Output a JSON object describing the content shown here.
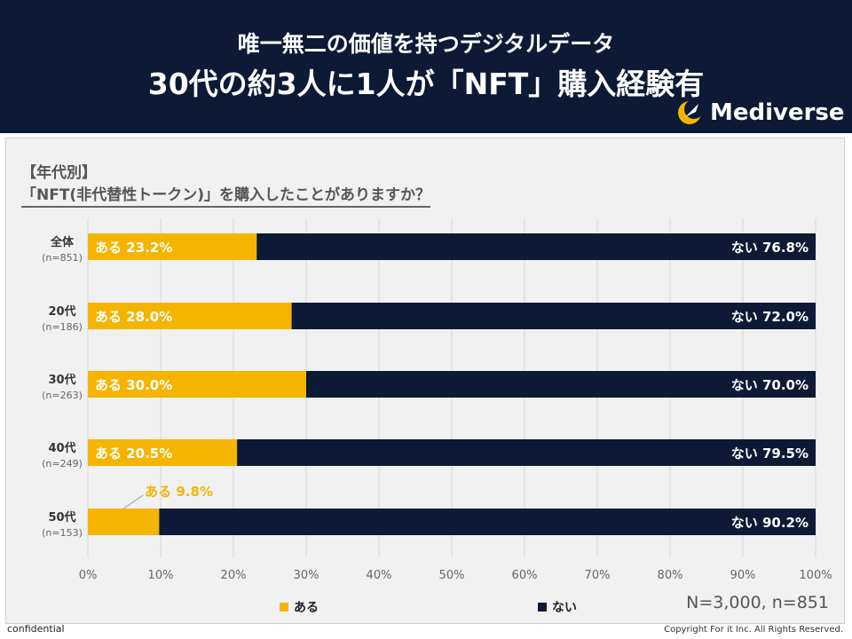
{
  "header": {
    "subtitle": "唯一無二の価値を持つデジタルデータ",
    "title": "30代の約3人に1人が「NFT」購入経験有",
    "brand": "Mediverse"
  },
  "panel": {
    "title_line1": "【年代別】",
    "title_line2": "「NFT(非代替性トークン)」を購入したことがありますか？"
  },
  "chart_data": {
    "type": "bar",
    "orientation": "horizontal",
    "stacked": true,
    "percent": true,
    "xlim": [
      0,
      100
    ],
    "x_ticks": [
      "0%",
      "10%",
      "20%",
      "30%",
      "40%",
      "50%",
      "60%",
      "70%",
      "80%",
      "90%",
      "100%"
    ],
    "categories": [
      {
        "label": "全体",
        "sub": "(n=851)"
      },
      {
        "label": "20代",
        "sub": "(n=186)"
      },
      {
        "label": "30代",
        "sub": "(n=263)"
      },
      {
        "label": "40代",
        "sub": "(n=249)"
      },
      {
        "label": "50代",
        "sub": "(n=153)"
      }
    ],
    "series": [
      {
        "name": "ある",
        "color": "#f5b400",
        "values": [
          23.2,
          28.0,
          30.0,
          20.5,
          9.8
        ],
        "labels": [
          "ある 23.2%",
          "ある 28.0%",
          "ある 30.0%",
          "ある 20.5%",
          "ある 9.8%"
        ]
      },
      {
        "name": "ない",
        "color": "#0d1a36",
        "values": [
          76.8,
          72.0,
          70.0,
          79.5,
          90.2
        ],
        "labels": [
          "ない 76.8%",
          "ない 72.0%",
          "ない 70.0%",
          "ない 79.5%",
          "ない 90.2%"
        ]
      }
    ],
    "legend": [
      "ある",
      "ない"
    ],
    "legend_position": "bottom",
    "note": "N=3,000, n=851"
  },
  "footer": {
    "left": "confidential",
    "right": "Copyright For it Inc. All Rights Reserved."
  }
}
